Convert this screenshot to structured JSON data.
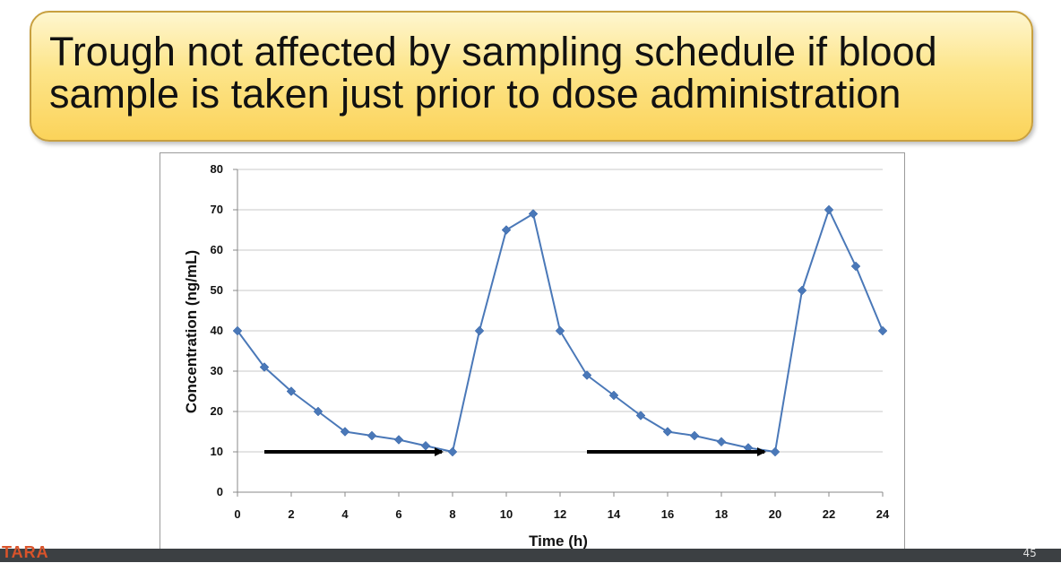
{
  "slide": {
    "title": "Trough not affected by sampling schedule if blood\nsample is taken just prior to dose administration"
  },
  "chart_data": {
    "type": "line",
    "title": "",
    "xlabel": "Time (h)",
    "ylabel": "Concentration (ng/mL)",
    "xlim": [
      0,
      24
    ],
    "ylim": [
      0,
      80
    ],
    "xticks": [
      0,
      2,
      4,
      6,
      8,
      10,
      12,
      14,
      16,
      18,
      20,
      22,
      24
    ],
    "yticks": [
      0,
      10,
      20,
      30,
      40,
      50,
      60,
      70,
      80
    ],
    "grid": "horizontal",
    "line_color": "#4a78b8",
    "series": [
      {
        "x": [
          0,
          1,
          2,
          3,
          4,
          5,
          6,
          7,
          8,
          9,
          10,
          11,
          12,
          13,
          14,
          15,
          16,
          17,
          18,
          19,
          20,
          21,
          22,
          23,
          24
        ],
        "values": [
          40,
          31,
          25,
          20,
          15,
          14,
          13,
          11.5,
          10,
          40,
          65,
          69,
          40,
          29,
          24,
          19,
          15,
          14,
          12.5,
          11,
          10,
          50,
          70,
          56,
          40
        ]
      }
    ],
    "annotations": [
      {
        "type": "arrow",
        "x_from": 1,
        "x_to": 7.6,
        "y": 10,
        "color": "#000000"
      },
      {
        "type": "arrow",
        "x_from": 13,
        "x_to": 19.6,
        "y": 10,
        "color": "#000000"
      }
    ]
  },
  "footer": {
    "logo_text": "TARA",
    "controls_text": "45        "
  }
}
